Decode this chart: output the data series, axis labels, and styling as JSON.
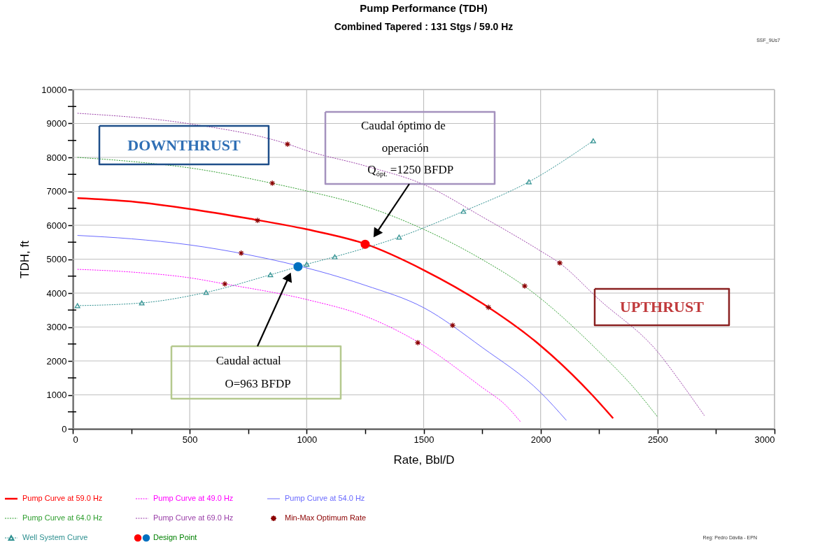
{
  "chart_data": {
    "type": "line",
    "title": "Pump Performance (TDH)",
    "subtitle": "Combined Tapered : 131 Stgs / 59.0 Hz",
    "xlabel": "Rate, Bbl/D",
    "ylabel": "TDH, ft",
    "xlim": [
      0,
      3000
    ],
    "ylim": [
      0,
      10000
    ],
    "xticks": [
      0,
      {
        "value": 250,
        "label": null
      },
      500,
      {
        "value": 750,
        "label": null
      },
      1000,
      {
        "value": 1250,
        "label": null
      },
      1500,
      {
        "value": 1750,
        "label": null
      },
      2000,
      {
        "value": 2250,
        "label": null
      },
      2500,
      {
        "value": 2750,
        "label": null
      },
      3000
    ],
    "yticks": [
      0,
      {
        "value": 500,
        "label": null
      },
      1000,
      {
        "value": 1500,
        "label": null
      },
      2000,
      {
        "value": 2500,
        "label": null
      },
      3000,
      {
        "value": 3500,
        "label": null
      },
      4000,
      {
        "value": 4500,
        "label": null
      },
      5000,
      {
        "value": 5500,
        "label": null
      },
      6000,
      {
        "value": 6500,
        "label": null
      },
      7000,
      {
        "value": 7500,
        "label": null
      },
      8000,
      {
        "value": 8500,
        "label": null
      },
      9000,
      {
        "value": 9500,
        "label": null
      },
      10000
    ],
    "grid": true,
    "legend": "bottom",
    "series": [
      {
        "name": "Pump Curve at 59.0 Hz",
        "color": "#ff0000",
        "line_style": "solid",
        "x": [
          20,
          250,
          500,
          750,
          1000,
          1250,
          1500,
          1750,
          2000,
          2220,
          2310
        ],
        "values": [
          6800,
          6700,
          6480,
          6200,
          5880,
          5450,
          4680,
          3700,
          2450,
          1000,
          310
        ]
      },
      {
        "name": "Pump Curve at 49.0 Hz",
        "color": "#ff00ff",
        "line_style": "dotted",
        "x": [
          20,
          250,
          500,
          650,
          1000,
          1250,
          1480,
          1750,
          1850,
          1915
        ],
        "values": [
          4700,
          4620,
          4450,
          4270,
          3810,
          3320,
          2540,
          1220,
          700,
          200
        ]
      },
      {
        "name": "Pump Curve at 54.0 Hz",
        "color": "#6a6aff",
        "line_style": "solid",
        "x": [
          20,
          250,
          500,
          750,
          1050,
          1250,
          1500,
          1750,
          2000,
          2110
        ],
        "values": [
          5700,
          5600,
          5420,
          5130,
          4650,
          4230,
          3570,
          2400,
          1070,
          250
        ]
      },
      {
        "name": "Pump Curve at 64.0 Hz",
        "color": "#2e9e2e",
        "line_style": "dotted",
        "x": [
          20,
          250,
          500,
          850,
          1000,
          1250,
          1500,
          1750,
          1930,
          2250,
          2400,
          2500
        ],
        "values": [
          8000,
          7880,
          7690,
          7240,
          7010,
          6560,
          5880,
          4990,
          4210,
          2270,
          1200,
          350
        ]
      },
      {
        "name": "Pump Curve at 69.0 Hz",
        "color": "#9a3fa8",
        "line_style": "dotted",
        "x": [
          20,
          500,
          920,
          1000,
          1250,
          1500,
          1750,
          2000,
          2080,
          2250,
          2500,
          2600,
          2700
        ],
        "values": [
          9300,
          8990,
          8390,
          8200,
          7750,
          7200,
          6250,
          5240,
          4890,
          3810,
          2270,
          1360,
          390
        ]
      },
      {
        "name": "Min-Max Optimum Rate",
        "type": "scatter",
        "color": "#8b0000",
        "marker": "cross",
        "x": [
          650,
          720,
          790,
          853,
          918,
          1475,
          1624,
          1777,
          1932,
          2082
        ],
        "values": [
          4270,
          5180,
          6140,
          7240,
          8390,
          2540,
          3050,
          3580,
          4210,
          4890
        ]
      },
      {
        "name": "Well System Curve",
        "color": "#2e9090",
        "line_style": "dotted",
        "marker": "triangle",
        "x": [
          20,
          295,
          570,
          845,
          1000,
          1120,
          1395,
          1670,
          1950,
          2225
        ],
        "values": [
          3630,
          3710,
          4020,
          4540,
          4850,
          5070,
          5650,
          6410,
          7280,
          8490
        ]
      },
      {
        "name": "Design Point",
        "type": "scatter",
        "color": "#008000",
        "colors": [
          "#ff0000",
          "#0070c0"
        ],
        "marker": "circle",
        "x": [
          1250,
          963
        ],
        "values": [
          5440,
          4780
        ]
      }
    ],
    "annotations": [
      "DOWNTHRUST",
      "UPTHRUST",
      "Caudal óptimo de\noperación\nQ$_{ópt.}$=1250 BFDP",
      "Caudal actual\nO=963 BFDP",
      "SSF_9Us7",
      "Reg: Pedro Dávila - EPN"
    ]
  }
}
